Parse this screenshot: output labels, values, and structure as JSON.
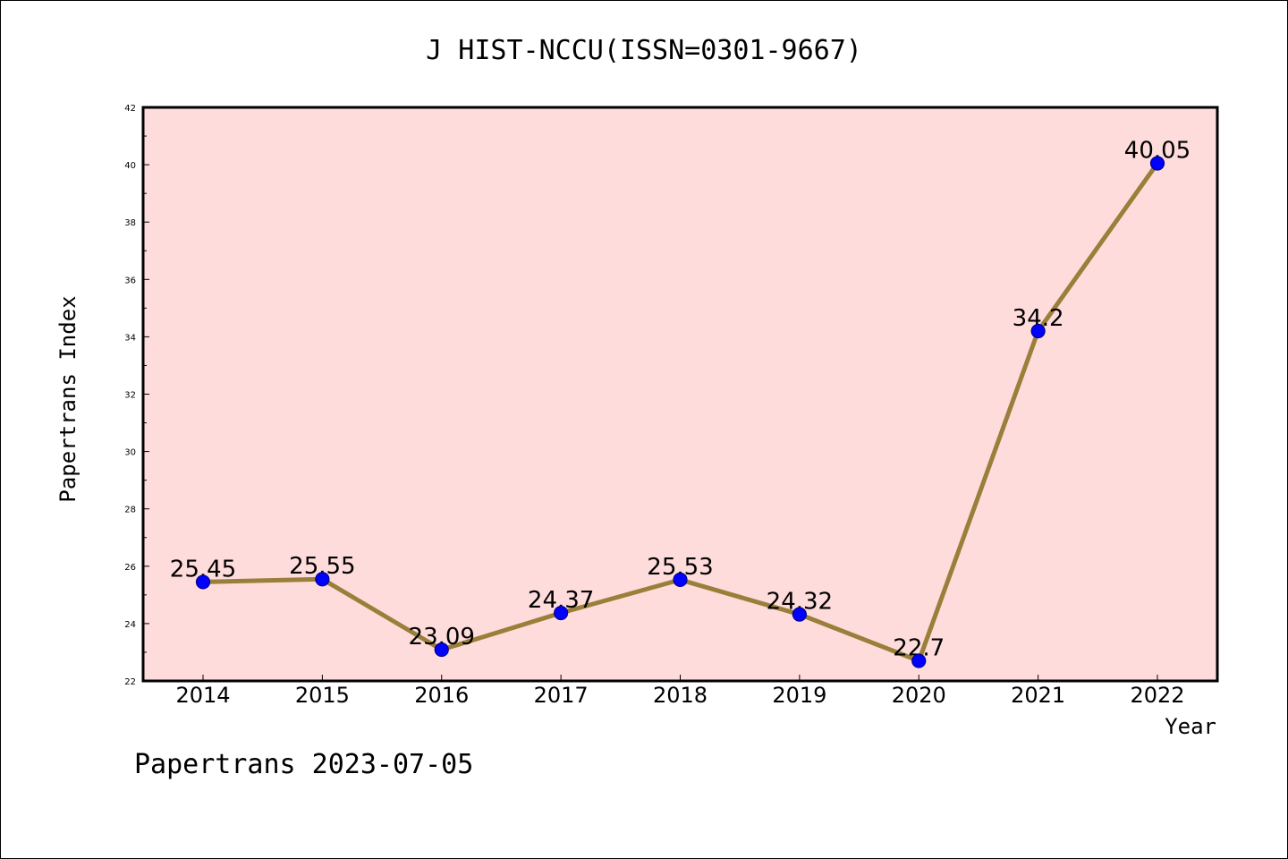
{
  "chart_data": {
    "type": "line",
    "title": "J HIST-NCCU(ISSN=0301-9667)",
    "xlabel": "Year",
    "ylabel": "Papertrans Index",
    "categories": [
      "2014",
      "2015",
      "2016",
      "2017",
      "2018",
      "2019",
      "2020",
      "2021",
      "2022"
    ],
    "series": [
      {
        "values": [
          25.45,
          25.55,
          23.09,
          24.37,
          25.53,
          24.32,
          22.7,
          34.2,
          40.05
        ],
        "labels": [
          "25.45",
          "25.55",
          "23.09",
          "24.37",
          "25.53",
          "24.32",
          "22.7",
          "34.2",
          "40.05"
        ]
      }
    ],
    "ylim": [
      22,
      42
    ],
    "yticks": [
      "22",
      "24",
      "26",
      "28",
      "30",
      "32",
      "34",
      "36",
      "38",
      "40",
      "42"
    ],
    "grid": false,
    "colors": {
      "plot_background": "#ffdcdc",
      "line": "#9a7f3a",
      "marker": "#0000ff",
      "marker_edge": "#00008b"
    }
  },
  "footer": {
    "text": "Papertrans 2023-07-05"
  }
}
